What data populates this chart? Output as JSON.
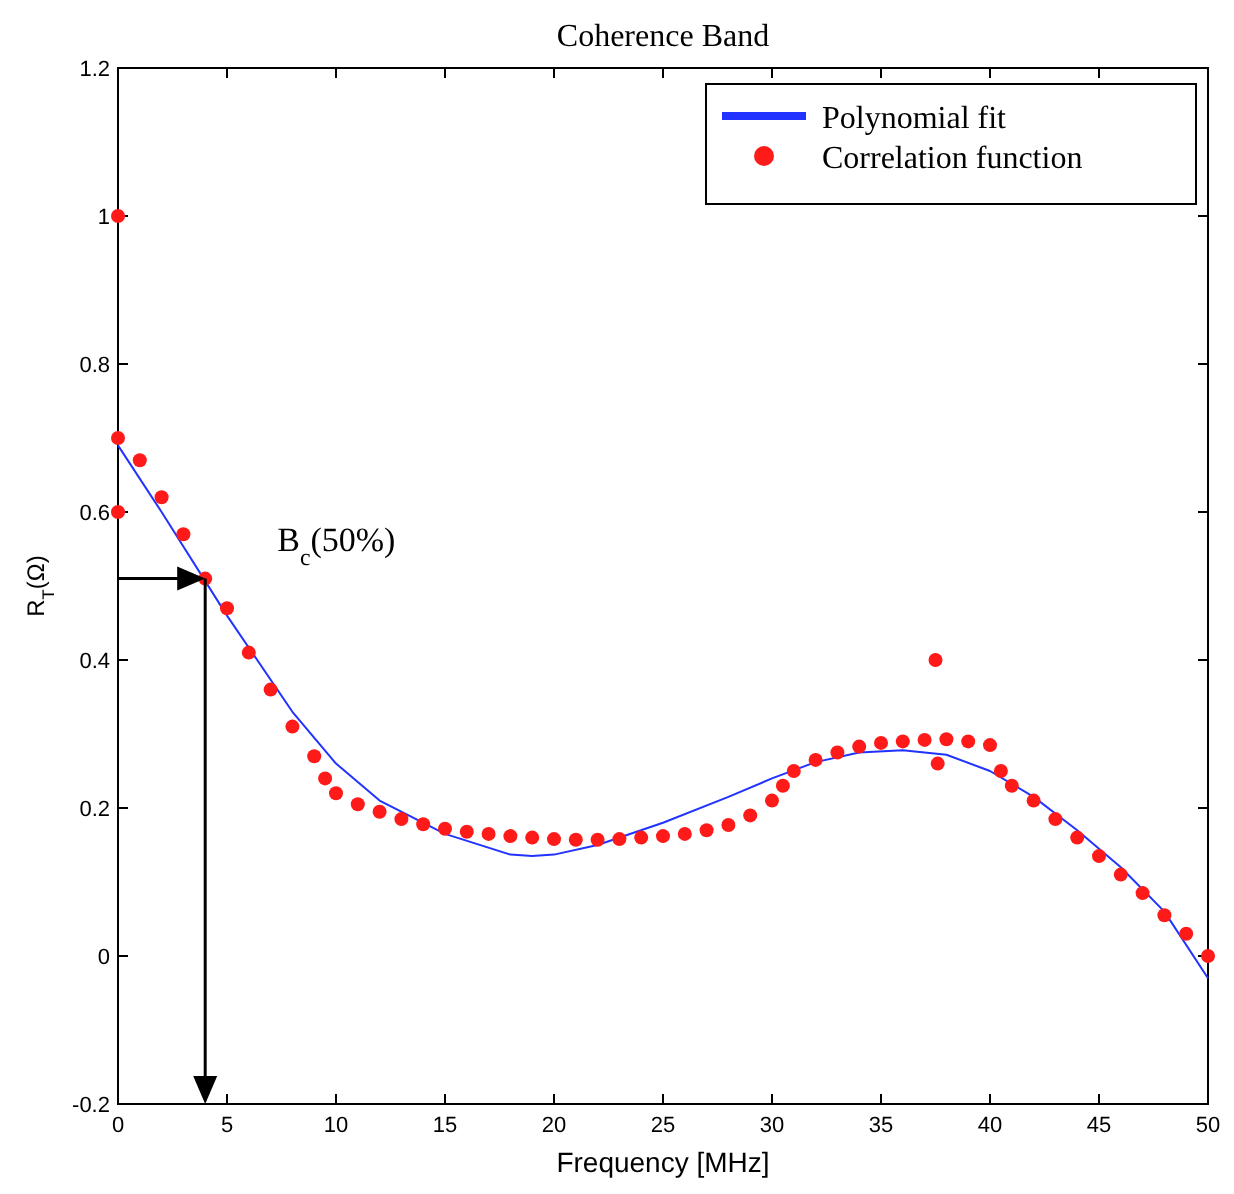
{
  "chart_data": {
    "type": "scatter",
    "title": "Coherence Band",
    "xlabel": "Frequency [MHz]",
    "ylabel": "R$_{T}$(Ω)",
    "xlim": [
      0,
      50
    ],
    "ylim": [
      -0.2,
      1.2
    ],
    "xticks": [
      0,
      5,
      10,
      15,
      20,
      25,
      30,
      35,
      40,
      45,
      50
    ],
    "yticks": [
      -0.2,
      0,
      0.2,
      0.4,
      0.6,
      0.8,
      1,
      1.2
    ],
    "grid": false,
    "legend": "top right",
    "annotations": [
      {
        "text": "B$_{c}$(50%)",
        "x": 4,
        "y": 0.51
      }
    ],
    "series": [
      {
        "name": "Polynomial fit",
        "type": "line",
        "color": "#2233ff",
        "marker": "none",
        "line_style": "solid",
        "x": [
          0,
          2,
          5,
          8,
          10,
          12,
          15,
          18,
          19,
          20,
          22,
          25,
          28,
          30,
          32,
          34,
          36,
          38,
          40,
          42,
          44,
          46,
          48,
          50
        ],
        "values": [
          0.69,
          0.6,
          0.46,
          0.33,
          0.26,
          0.21,
          0.165,
          0.137,
          0.135,
          0.137,
          0.15,
          0.18,
          0.215,
          0.24,
          0.262,
          0.275,
          0.278,
          0.272,
          0.25,
          0.215,
          0.17,
          0.12,
          0.06,
          -0.03
        ]
      },
      {
        "name": "Correlation function",
        "color": "#ff1a1a",
        "marker": "circle",
        "x": [
          0,
          0,
          0,
          1,
          2,
          3,
          4,
          5,
          6,
          7,
          8,
          9,
          9.5,
          10,
          11,
          12,
          13,
          14,
          15,
          16,
          17,
          18,
          19,
          20,
          21,
          22,
          23,
          24,
          25,
          26,
          27,
          28,
          29,
          30,
          30.5,
          31,
          32,
          33,
          34,
          35,
          36,
          37,
          37.5,
          37.6,
          38,
          39,
          40,
          40.5,
          41,
          42,
          43,
          44,
          45,
          46,
          47,
          48,
          49,
          50
        ],
        "values": [
          1,
          0.6,
          0.7,
          0.67,
          0.62,
          0.57,
          0.51,
          0.47,
          0.41,
          0.36,
          0.31,
          0.27,
          0.24,
          0.22,
          0.205,
          0.195,
          0.185,
          0.178,
          0.172,
          0.168,
          0.165,
          0.162,
          0.16,
          0.158,
          0.157,
          0.157,
          0.158,
          0.16,
          0.162,
          0.165,
          0.17,
          0.177,
          0.19,
          0.21,
          0.23,
          0.25,
          0.265,
          0.275,
          0.283,
          0.288,
          0.29,
          0.292,
          0.4,
          0.26,
          0.293,
          0.29,
          0.285,
          0.25,
          0.23,
          0.21,
          0.185,
          0.16,
          0.135,
          0.11,
          0.085,
          0.055,
          0.03,
          0
        ]
      }
    ]
  }
}
